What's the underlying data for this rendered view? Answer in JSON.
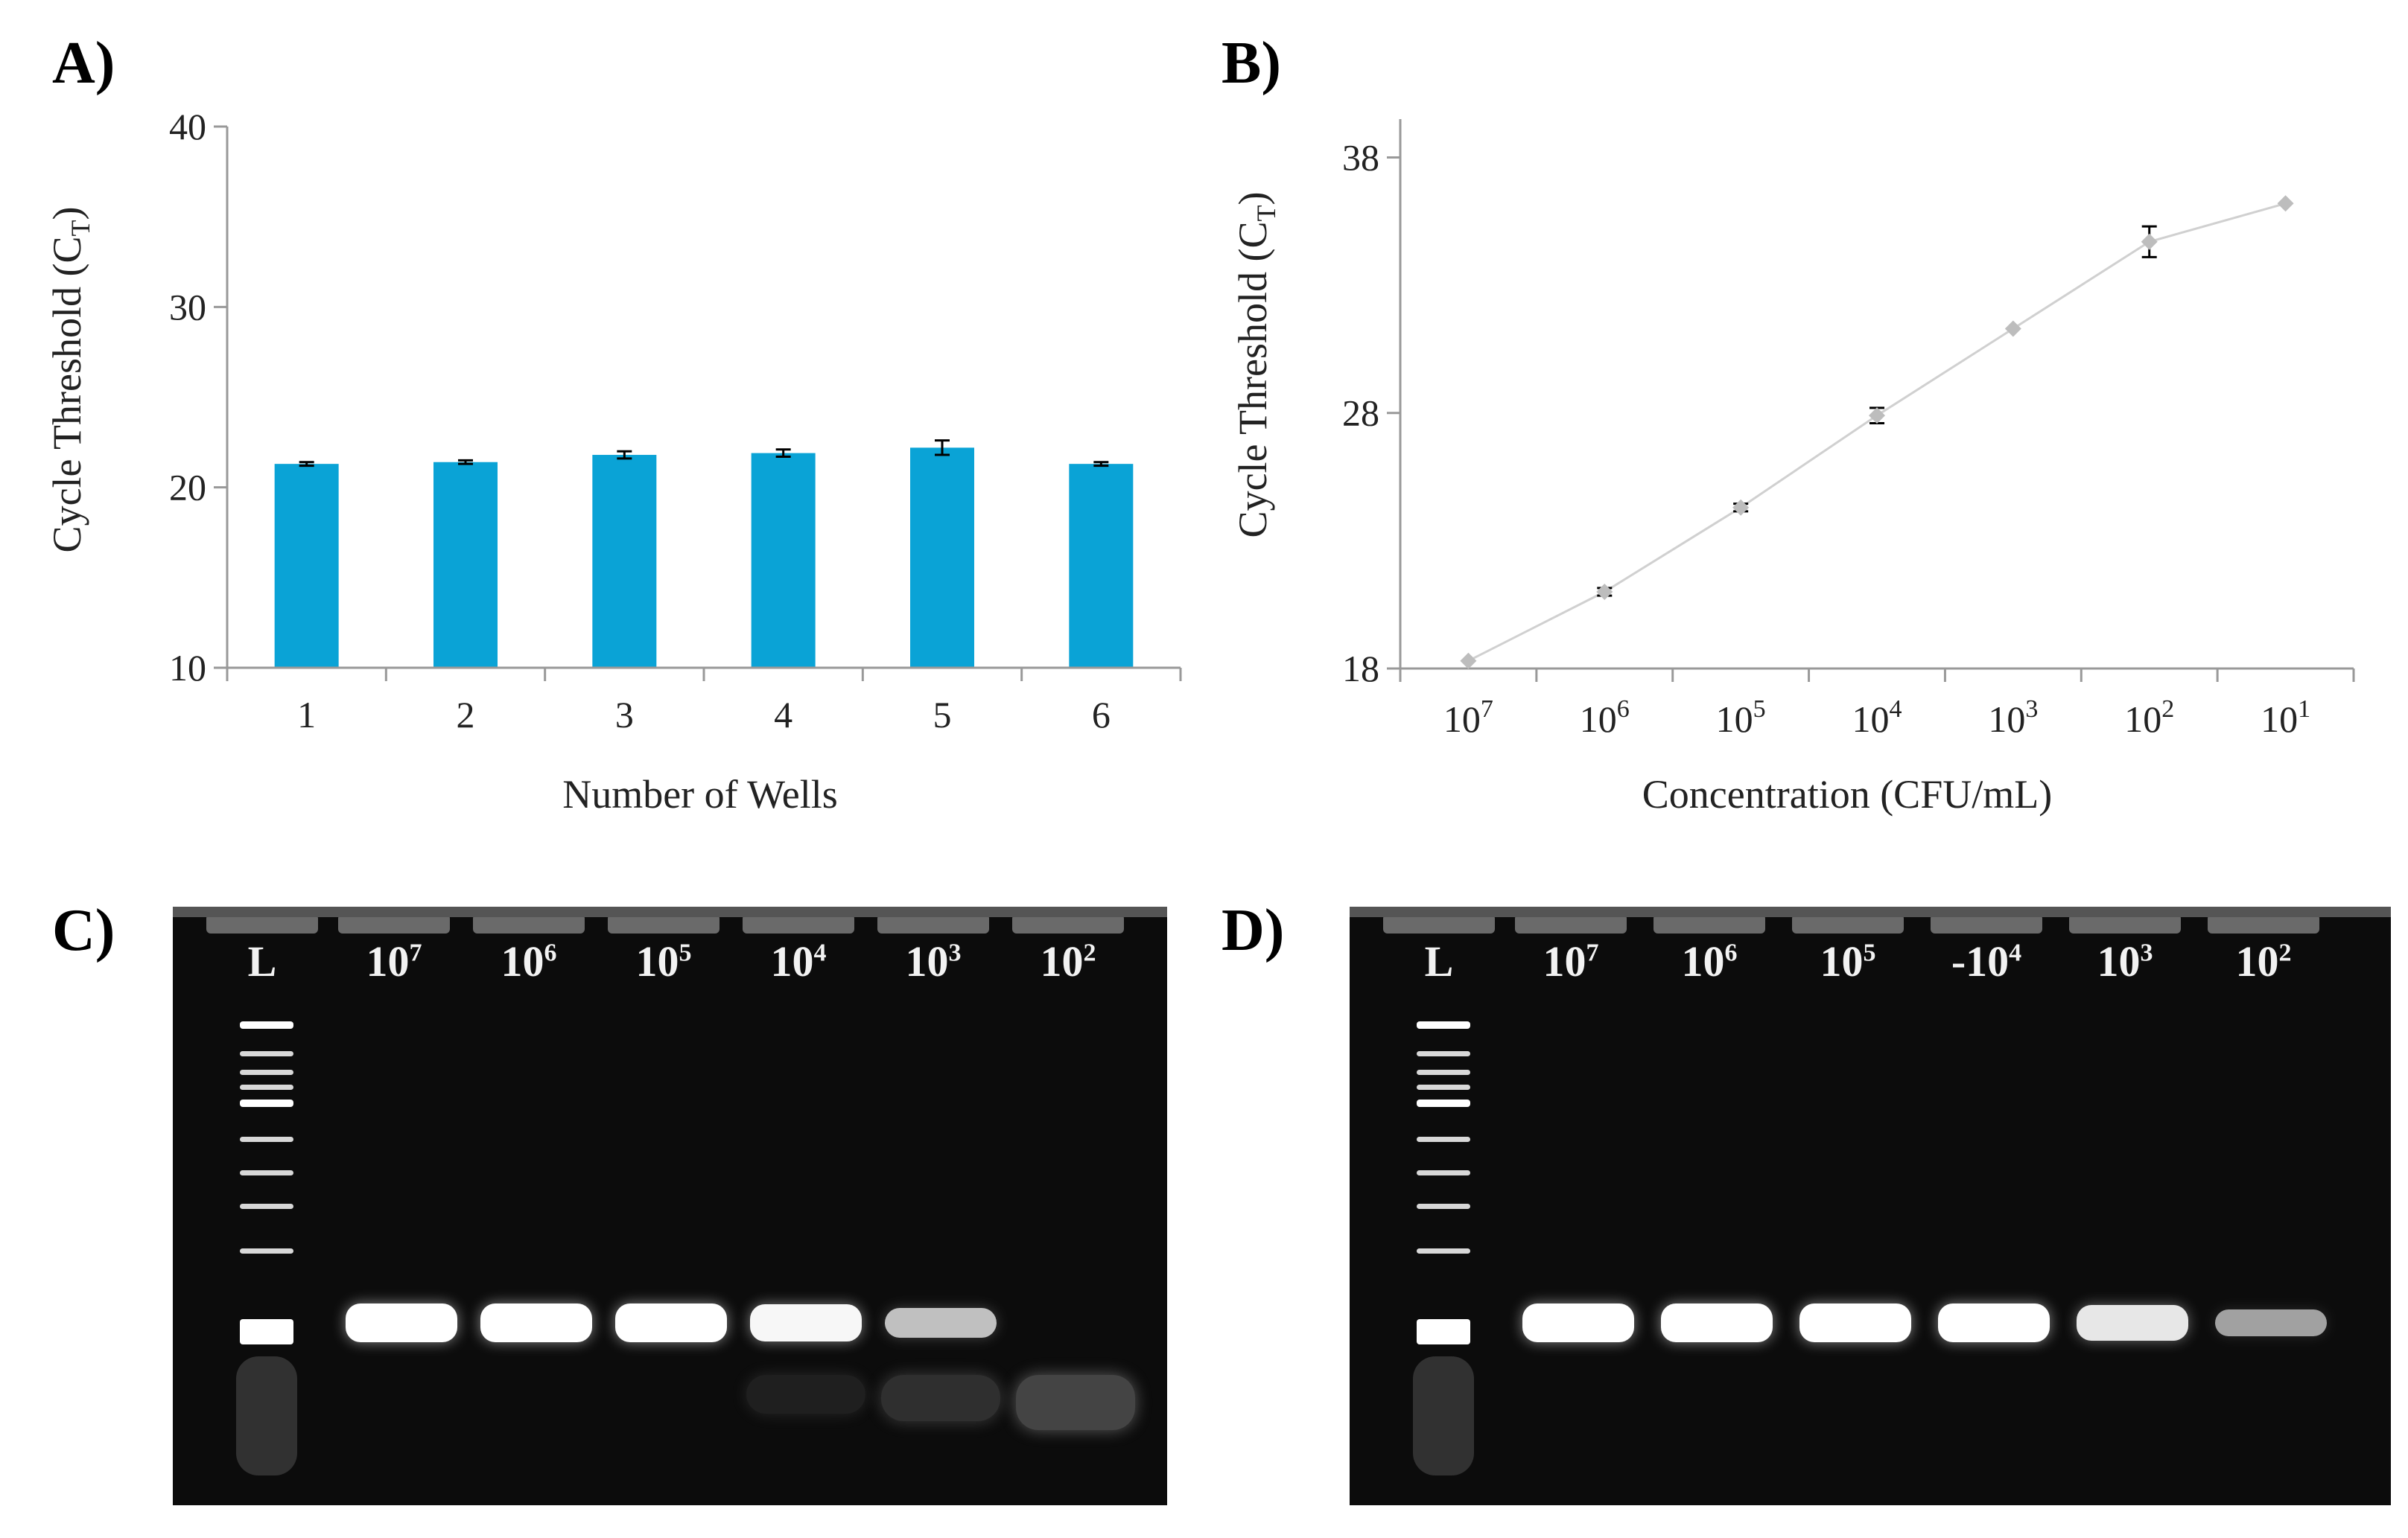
{
  "panels": {
    "a": "A)",
    "b": "B)",
    "c": "C)",
    "d": "D)"
  },
  "chart_data": [
    {
      "type": "bar",
      "panel": "A)",
      "categories": [
        "1",
        "2",
        "3",
        "4",
        "5",
        "6"
      ],
      "values": [
        21.3,
        21.4,
        21.8,
        21.9,
        22.2,
        21.3
      ],
      "errors": [
        0.1,
        0.1,
        0.2,
        0.2,
        0.4,
        0.1
      ],
      "xlabel": "Number of Wells",
      "ylabel_main": "Cycle Threshold (C",
      "ylabel_sub": "T",
      "ylabel_end": ")",
      "ylim": [
        10,
        40
      ],
      "yticks": [
        "10",
        "20",
        "30",
        "40"
      ],
      "bar_color": "#0aa3d6",
      "grid": false
    },
    {
      "type": "line",
      "panel": "B)",
      "x": [
        "10^7",
        "10^6",
        "10^5",
        "10^4",
        "10^3",
        "10^2",
        "10^1"
      ],
      "x_base": "10",
      "x_exponents": [
        "7",
        "6",
        "5",
        "4",
        "3",
        "2",
        "1"
      ],
      "values": [
        18.3,
        21.0,
        24.3,
        27.9,
        31.3,
        34.7,
        36.2
      ],
      "errors": [
        0,
        0.15,
        0.15,
        0.3,
        0,
        0.6,
        0
      ],
      "xlabel": "Concentration (CFU/mL)",
      "ylabel_main": "Cycle Threshold (C",
      "ylabel_sub": "T",
      "ylabel_end": ")",
      "ylim": [
        18,
        39.5
      ],
      "yticks": [
        "18",
        "28",
        "38"
      ],
      "line_color": "#d0d0d0",
      "marker_color": "#bdbdbd",
      "grid": false
    }
  ],
  "gels": [
    {
      "panel": "C)",
      "ladder_label": "L",
      "lanes": [
        {
          "base": "10",
          "exp": "7",
          "band": 1.0,
          "low_smear": 0
        },
        {
          "base": "10",
          "exp": "6",
          "band": 1.0,
          "low_smear": 0
        },
        {
          "base": "10",
          "exp": "5",
          "band": 1.0,
          "low_smear": 0
        },
        {
          "base": "10",
          "exp": "4",
          "band": 0.95,
          "low_smear": 0.3
        },
        {
          "base": "10",
          "exp": "3",
          "band": 0.6,
          "low_smear": 0.55
        },
        {
          "base": "10",
          "exp": "2",
          "band": 0,
          "low_smear": 0.85
        }
      ]
    },
    {
      "panel": "D)",
      "ladder_label": "L",
      "lanes": [
        {
          "base": "10",
          "exp": "7",
          "band": 1.0,
          "low_smear": 0
        },
        {
          "base": "10",
          "exp": "6",
          "band": 1.0,
          "low_smear": 0
        },
        {
          "base": "10",
          "exp": "5",
          "band": 1.0,
          "low_smear": 0
        },
        {
          "base": "10",
          "exp": "4",
          "band": 1.0,
          "low_smear": 0,
          "prefix": "-"
        },
        {
          "base": "10",
          "exp": "3",
          "band": 0.85,
          "low_smear": 0
        },
        {
          "base": "10",
          "exp": "2",
          "band": 0.4,
          "low_smear": 0
        }
      ]
    }
  ]
}
